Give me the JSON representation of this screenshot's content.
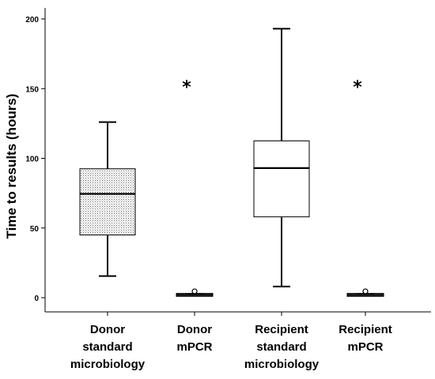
{
  "chart_data": {
    "type": "boxplot",
    "title": "",
    "xlabel": "",
    "ylabel": "Time to results (hours)",
    "ylim": [
      -10,
      210
    ],
    "yticks": [
      0,
      50,
      100,
      150,
      200
    ],
    "grid": false,
    "legend": "none",
    "outlier_marker_star": "*",
    "categories": [
      [
        "Donor",
        "standard",
        "microbiology"
      ],
      [
        "Donor",
        "mPCR"
      ],
      [
        "Recipient",
        "standard",
        "microbiology"
      ],
      [
        "Recipient",
        "mPCR"
      ]
    ],
    "boxes": [
      {
        "whisker_low": 15.5,
        "q1": 45,
        "median": 74.5,
        "q3": 92.5,
        "whisker_high": 126,
        "outliers_circle": [],
        "outliers_star": [],
        "fill": "dotted"
      },
      {
        "whisker_low": 1.5,
        "q1": 1.5,
        "median": 2,
        "q3": 2.5,
        "whisker_high": 2.5,
        "outliers_circle": [
          4
        ],
        "outliers_star": [
          156
        ],
        "fill": "dotted"
      },
      {
        "whisker_low": 8,
        "q1": 58,
        "median": 93,
        "q3": 112.5,
        "whisker_high": 193,
        "outliers_circle": [],
        "outliers_star": [],
        "fill": "none"
      },
      {
        "whisker_low": 1.5,
        "q1": 1.5,
        "median": 2,
        "q3": 2.5,
        "whisker_high": 2.5,
        "outliers_circle": [
          4
        ],
        "outliers_star": [
          156
        ],
        "fill": "none"
      }
    ]
  }
}
